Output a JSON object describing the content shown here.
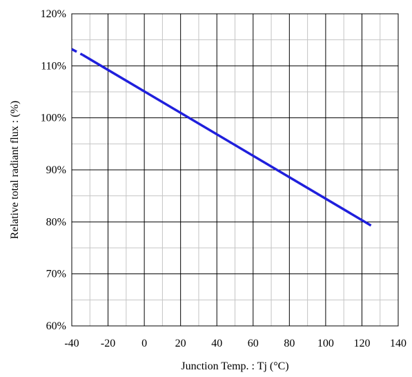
{
  "chart_data": {
    "type": "line",
    "title": "",
    "xlabel": "Junction Temp. : Tj (°C)",
    "ylabel": "Relative total radiant flux : (%)",
    "xlim": [
      -40,
      140
    ],
    "ylim": [
      60,
      120
    ],
    "x_ticks": [
      -40,
      -20,
      0,
      20,
      40,
      60,
      80,
      100,
      120,
      140
    ],
    "x_tick_labels": [
      "-40",
      "-20",
      "0",
      "20",
      "40",
      "60",
      "80",
      "100",
      "120",
      "140"
    ],
    "y_ticks": [
      60,
      70,
      80,
      90,
      100,
      110,
      120
    ],
    "y_tick_labels": [
      "60%",
      "70%",
      "80%",
      "90%",
      "100%",
      "110%",
      "120%"
    ],
    "grid": true,
    "legend": "none",
    "series": [
      {
        "color": "#1f1fdc",
        "segments": [
          {
            "style": "dashed",
            "x": [
              -40,
              -34
            ],
            "y": [
              113.2,
              112.1
            ]
          },
          {
            "style": "solid",
            "x": [
              -34,
              125
            ],
            "y": [
              112.1,
              79.3
            ]
          }
        ]
      }
    ]
  }
}
